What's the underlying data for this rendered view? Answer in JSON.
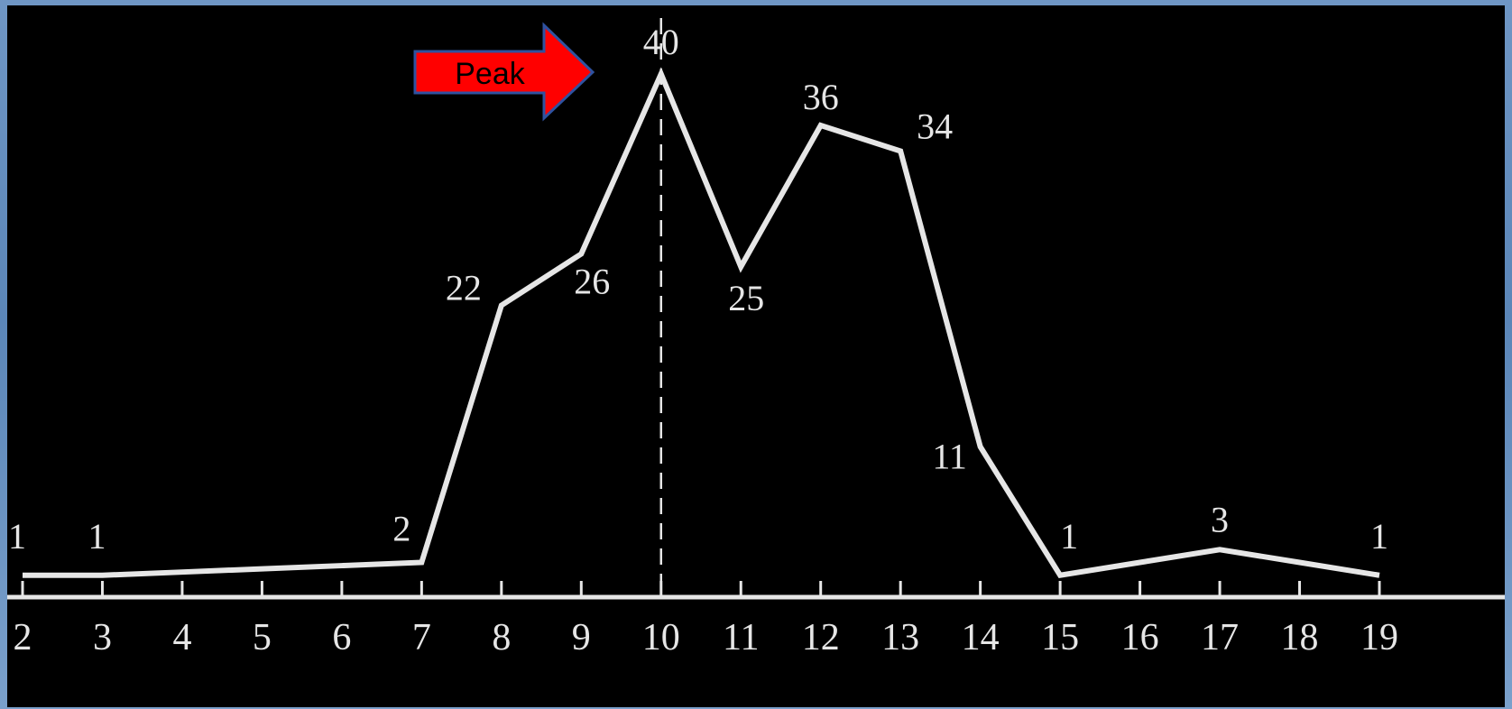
{
  "chart_data": {
    "type": "line",
    "x": [
      2,
      3,
      4,
      5,
      6,
      7,
      8,
      9,
      10,
      11,
      12,
      13,
      14,
      15,
      16,
      17,
      18,
      19
    ],
    "tick_labels": [
      "2",
      "3",
      "4",
      "5",
      "6",
      "7",
      "8",
      "9",
      "10",
      "11",
      "12",
      "13",
      "14",
      "15",
      "16",
      "17",
      "18",
      "19"
    ],
    "values": [
      1,
      1,
      1.25,
      1.5,
      1.75,
      2,
      22,
      26,
      40,
      25,
      36,
      34,
      11,
      1,
      2,
      3,
      2,
      1
    ],
    "data_labels": [
      {
        "x": 2,
        "text": "1"
      },
      {
        "x": 3,
        "text": "1"
      },
      {
        "x": 7,
        "text": "2"
      },
      {
        "x": 8,
        "text": "22"
      },
      {
        "x": 9,
        "text": "26"
      },
      {
        "x": 10,
        "text": "40"
      },
      {
        "x": 11,
        "text": "25"
      },
      {
        "x": 12,
        "text": "36"
      },
      {
        "x": 13,
        "text": "34"
      },
      {
        "x": 14,
        "text": "11"
      },
      {
        "x": 15,
        "text": "1"
      },
      {
        "x": 17,
        "text": "3"
      },
      {
        "x": 19,
        "text": "1"
      }
    ],
    "xlim": [
      2,
      19
    ],
    "ylim": [
      0,
      40
    ],
    "peak_x": 10,
    "annotation": {
      "text": "Peak"
    },
    "grid": false,
    "colors": {
      "background": "#000000",
      "line": "#e6e6e6",
      "arrow_fill": "#ff0000",
      "arrow_stroke": "#2f52a0",
      "outer_background": "#5b86b8"
    }
  }
}
